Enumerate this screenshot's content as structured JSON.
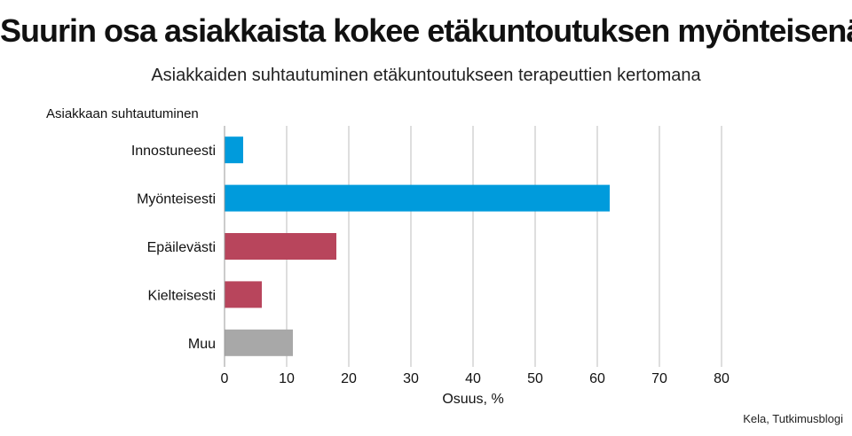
{
  "title": "Suurin osa asiakkaista kokee etäkuntoutuksen myönteisenä",
  "subtitle": "Asiakkaiden suhtautuminen etäkuntoutukseen terapeuttien kertomana",
  "source": "Kela, Tutkimusblogi",
  "colors": {
    "positive": "#009bdc",
    "negative": "#b8455c",
    "other": "#a8a8a8",
    "grid": "#bdbdbd"
  },
  "chart_data": {
    "type": "bar",
    "orientation": "horizontal",
    "ylabel": "Asiakkaan suhtautuminen",
    "xlabel": "Osuus, %",
    "categories": [
      "Innostuneesti",
      "Myönteisesti",
      "Epäilevästi",
      "Kielteisesti",
      "Muu"
    ],
    "values": [
      3,
      62,
      18,
      6,
      11
    ],
    "bar_colors": [
      "#009bdc",
      "#009bdc",
      "#b8455c",
      "#b8455c",
      "#a8a8a8"
    ],
    "xlim": [
      0,
      80
    ],
    "xticks": [
      0,
      10,
      20,
      30,
      40,
      50,
      60,
      70,
      80
    ],
    "grid": true
  }
}
